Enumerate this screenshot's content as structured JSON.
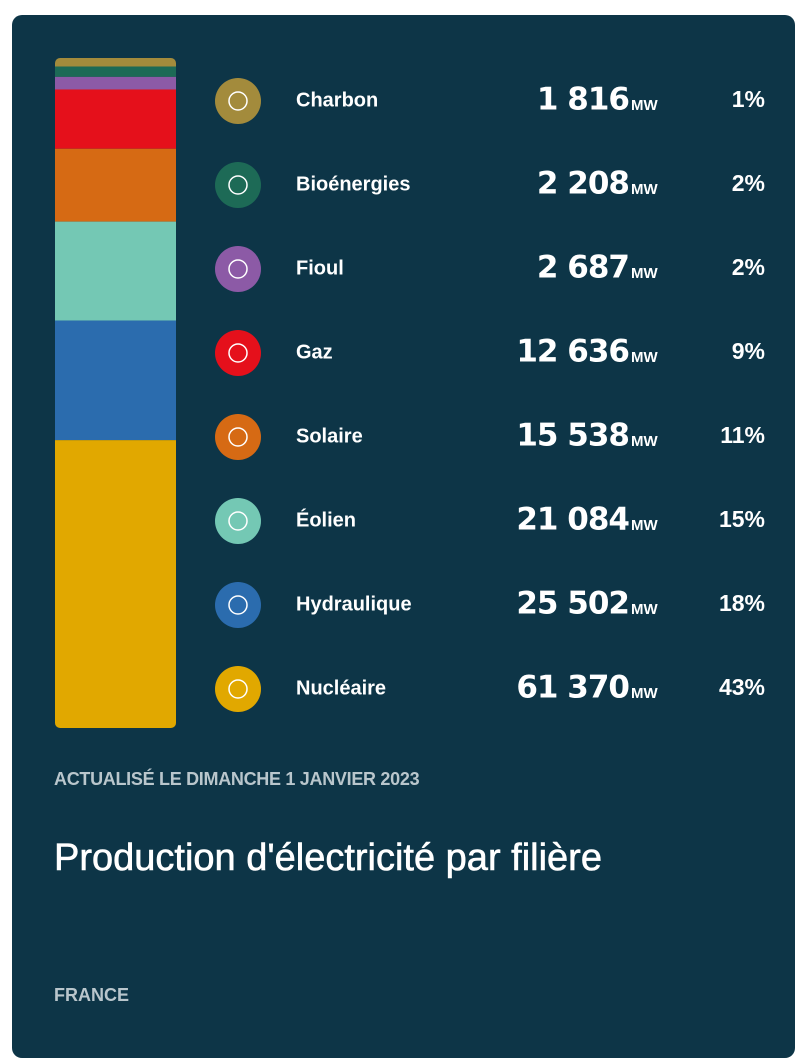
{
  "chart_data": {
    "type": "stacked-bar",
    "categories": [
      "Charbon",
      "Bioénergies",
      "Fioul",
      "Gaz",
      "Solaire",
      "Éolien",
      "Hydraulique",
      "Nucléaire"
    ],
    "values": [
      1816,
      2208,
      2687,
      12636,
      15538,
      21084,
      25502,
      61370
    ],
    "value_labels": [
      "1 816",
      "2 208",
      "2 687",
      "12 636",
      "15 538",
      "21 084",
      "25 502",
      "61 370"
    ],
    "unit": "MW",
    "share_labels": [
      "1%",
      "2%",
      "2%",
      "9%",
      "11%",
      "15%",
      "18%",
      "43%"
    ],
    "colors": [
      "#a38b3c",
      "#1d6a56",
      "#8c5aa6",
      "#e5101b",
      "#d66a14",
      "#74c8b4",
      "#2b6cae",
      "#e1a800"
    ],
    "updated": "ACTUALISÉ LE DIMANCHE 1 JANVIER 2023",
    "title": "Production d'électricité par filière",
    "subtitle": "FRANCE"
  }
}
